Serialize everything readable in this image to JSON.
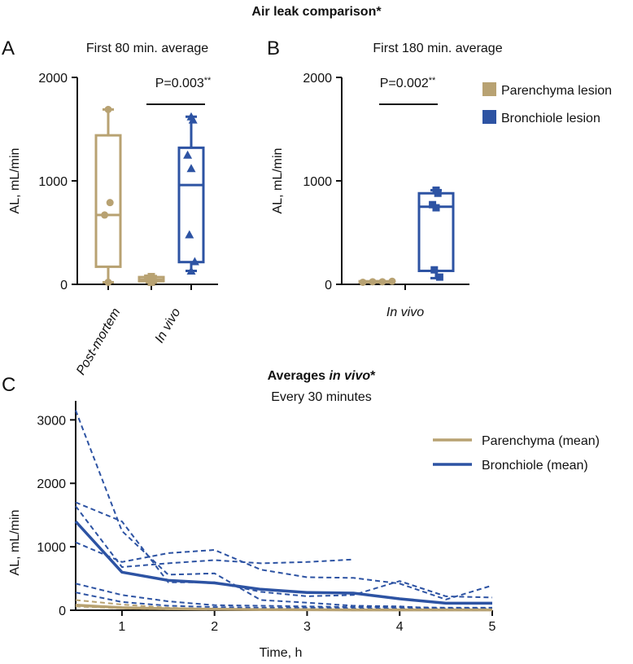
{
  "title": "Air leak comparison*",
  "colors": {
    "parenchyma": "#b8a272",
    "bronchiole": "#2d53a3",
    "axis": "#111111"
  },
  "legend_top": {
    "parenchyma": "Parenchyma lesion",
    "bronchiole": "Bronchiole lesion"
  },
  "legend_bottom": {
    "parenchyma": "Parenchyma (mean)",
    "bronchiole": "Bronchiole (mean)"
  },
  "chart_data": [
    {
      "panel": "A",
      "type": "box",
      "subtitle": "First 80 min. average",
      "ylabel": "AL, mL/min",
      "ylim": [
        0,
        2000
      ],
      "yticks": [
        0,
        1000,
        2000
      ],
      "significance": "P=0.003",
      "significance_mark": "**",
      "boxes": [
        {
          "category": "Post-mortem",
          "series": "Parenchyma lesion",
          "min": 20,
          "q1": 170,
          "median": 670,
          "q3": 1440,
          "max": 1690,
          "points": [
            1690,
            790,
            670,
            20
          ],
          "marker": "circle"
        },
        {
          "category": "In vivo",
          "series": "Parenchyma lesion",
          "min": 20,
          "q1": 30,
          "median": 45,
          "q3": 70,
          "max": 80,
          "points": [
            20,
            40,
            60,
            75
          ],
          "marker": "square"
        },
        {
          "category": "In vivo",
          "series": "Bronchiole lesion",
          "min": 130,
          "q1": 215,
          "median": 960,
          "q3": 1320,
          "max": 1620,
          "points": [
            1620,
            1590,
            1250,
            1120,
            480,
            220,
            130
          ],
          "marker": "triangle"
        }
      ],
      "categories": [
        "Post-mortem",
        "In vivo"
      ]
    },
    {
      "panel": "B",
      "type": "box",
      "subtitle": "First 180 min. average",
      "ylabel": "AL, mL/min",
      "ylim": [
        0,
        2000
      ],
      "yticks": [
        0,
        1000,
        2000
      ],
      "significance": "P=0.002",
      "significance_mark": "**",
      "boxes": [
        {
          "category": "In vivo",
          "series": "Parenchyma lesion",
          "min": 20,
          "q1": 20,
          "median": 25,
          "q3": 30,
          "max": 30,
          "points": [
            20,
            25,
            25,
            30
          ],
          "marker": "circle"
        },
        {
          "category": "In vivo",
          "series": "Bronchiole lesion",
          "min": 60,
          "q1": 130,
          "median": 750,
          "q3": 880,
          "max": 910,
          "points": [
            910,
            880,
            770,
            740,
            140,
            70
          ],
          "marker": "square"
        }
      ],
      "categories": [
        "In vivo"
      ]
    },
    {
      "panel": "C",
      "type": "line",
      "title_part1": "Averages ",
      "title_part2": "in vivo",
      "title_part3": "*",
      "subtitle": "Every 30 minutes",
      "xlabel": "Time, h",
      "ylabel": "AL, mL/min",
      "xlim": [
        0.5,
        5
      ],
      "ylim": [
        0,
        3300
      ],
      "xticks": [
        1,
        2,
        3,
        4,
        5
      ],
      "yticks": [
        0,
        1000,
        2000,
        3000
      ],
      "series": [
        {
          "name": "Parenchyma (mean)",
          "role": "mean",
          "group": "parenchyma",
          "x": [
            0.5,
            1,
            1.5,
            2,
            2.5,
            3,
            3.5,
            4,
            4.5,
            5
          ],
          "y": [
            80,
            40,
            25,
            15,
            10,
            8,
            5,
            5,
            5,
            5
          ]
        },
        {
          "name": "Bronchiole (mean)",
          "role": "mean",
          "group": "bronchiole",
          "x": [
            0.5,
            1,
            1.5,
            2,
            2.5,
            3,
            3.5,
            4,
            4.5,
            5
          ],
          "y": [
            1400,
            600,
            470,
            430,
            330,
            280,
            270,
            180,
            110,
            110
          ]
        },
        {
          "name": "Bronchiole individual 1",
          "role": "individual",
          "group": "bronchiole",
          "x": [
            0.5,
            1,
            1.5,
            2,
            2.5,
            3,
            3.5,
            4,
            4.5,
            5
          ],
          "y": [
            3150,
            1250,
            560,
            580,
            160,
            120,
            70,
            60,
            20,
            10
          ]
        },
        {
          "name": "Bronchiole individual 2",
          "role": "individual",
          "group": "bronchiole",
          "x": [
            0.5,
            1,
            1.5,
            2,
            2.5,
            3,
            3.5,
            4,
            4.5,
            5
          ],
          "y": [
            1700,
            1400,
            440,
            440,
            290,
            220,
            240,
            460,
            220,
            200
          ]
        },
        {
          "name": "Bronchiole individual 3",
          "role": "individual",
          "group": "bronchiole",
          "x": [
            0.5,
            1,
            1.5,
            2,
            2.5,
            3,
            3.5
          ],
          "y": [
            1640,
            680,
            740,
            790,
            740,
            760,
            800
          ]
        },
        {
          "name": "Bronchiole individual 4",
          "role": "individual",
          "group": "bronchiole",
          "x": [
            0.5,
            1,
            1.5,
            2,
            2.5,
            3,
            3.5,
            4,
            4.5,
            5
          ],
          "y": [
            1070,
            760,
            900,
            950,
            640,
            520,
            510,
            420,
            170,
            390
          ]
        },
        {
          "name": "Bronchiole individual 5",
          "role": "individual",
          "group": "bronchiole",
          "x": [
            0.5,
            1,
            1.5,
            2,
            2.5,
            3,
            3.5,
            4,
            4.5,
            5
          ],
          "y": [
            420,
            240,
            140,
            80,
            70,
            60,
            50,
            50,
            40,
            40
          ]
        },
        {
          "name": "Bronchiole individual 6",
          "role": "individual",
          "group": "bronchiole",
          "x": [
            0.5,
            1,
            1.5,
            2,
            2.5,
            3,
            3.5,
            4,
            4.5,
            5
          ],
          "y": [
            280,
            130,
            70,
            50,
            40,
            40,
            30,
            30,
            30,
            30
          ]
        },
        {
          "name": "Parenchyma individual 1",
          "role": "individual",
          "group": "parenchyma",
          "x": [
            0.5,
            1,
            1.5,
            2,
            2.5,
            3,
            3.5,
            4,
            4.5,
            5
          ],
          "y": [
            160,
            90,
            40,
            20,
            10,
            10,
            5,
            5,
            5,
            5
          ]
        },
        {
          "name": "Parenchyma individual 2",
          "role": "individual",
          "group": "parenchyma",
          "x": [
            0.5,
            1,
            1.5,
            2,
            2.5,
            3,
            3.5,
            4,
            4.5,
            5
          ],
          "y": [
            60,
            30,
            15,
            10,
            8,
            5,
            5,
            5,
            5,
            5
          ]
        }
      ]
    }
  ],
  "panel_labels": [
    "A",
    "B",
    "C"
  ]
}
